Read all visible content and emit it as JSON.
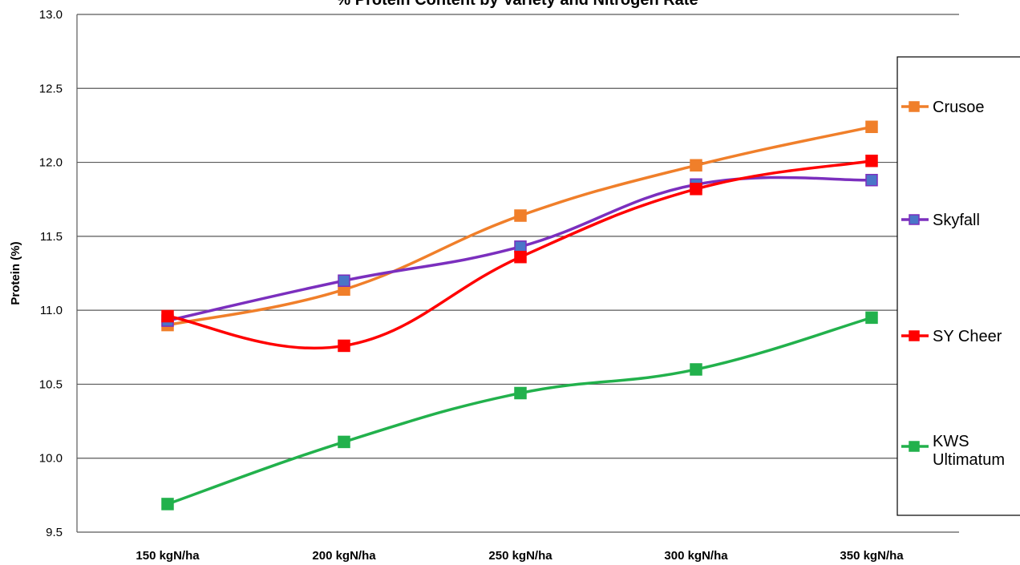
{
  "chart_data": {
    "type": "line",
    "title": "% Protein Content by Variety and Nitrogen Rate",
    "xlabel": "",
    "ylabel": "Protein (%)",
    "categories": [
      "150 kgN/ha",
      "200 kgN/ha",
      "250 kgN/ha",
      "300 kgN/ha",
      "350 kgN/ha"
    ],
    "ylim": [
      9.5,
      13.0
    ],
    "yticks": [
      "9.5",
      "10.0",
      "10.5",
      "11.0",
      "11.5",
      "12.0",
      "12.5",
      "13.0"
    ],
    "grid": true,
    "legend_position": "right",
    "series": [
      {
        "name": "Crusoe",
        "values": [
          10.9,
          11.14,
          11.64,
          11.98,
          12.24
        ],
        "color": "#f07f2a",
        "marker_color": "#f07f2a"
      },
      {
        "name": "Skyfall",
        "values": [
          10.93,
          11.2,
          11.43,
          11.85,
          11.88
        ],
        "color": "#7b2fbe",
        "marker_color": "#4a75c8"
      },
      {
        "name": "SY Cheer",
        "values": [
          10.96,
          10.76,
          11.36,
          11.82,
          12.01
        ],
        "color": "#ff0000",
        "marker_color": "#ff0000"
      },
      {
        "name": "KWS Ultimatum",
        "values": [
          9.69,
          10.11,
          10.44,
          10.6,
          10.95
        ],
        "color": "#22b14c",
        "marker_color": "#22b14c"
      }
    ]
  }
}
